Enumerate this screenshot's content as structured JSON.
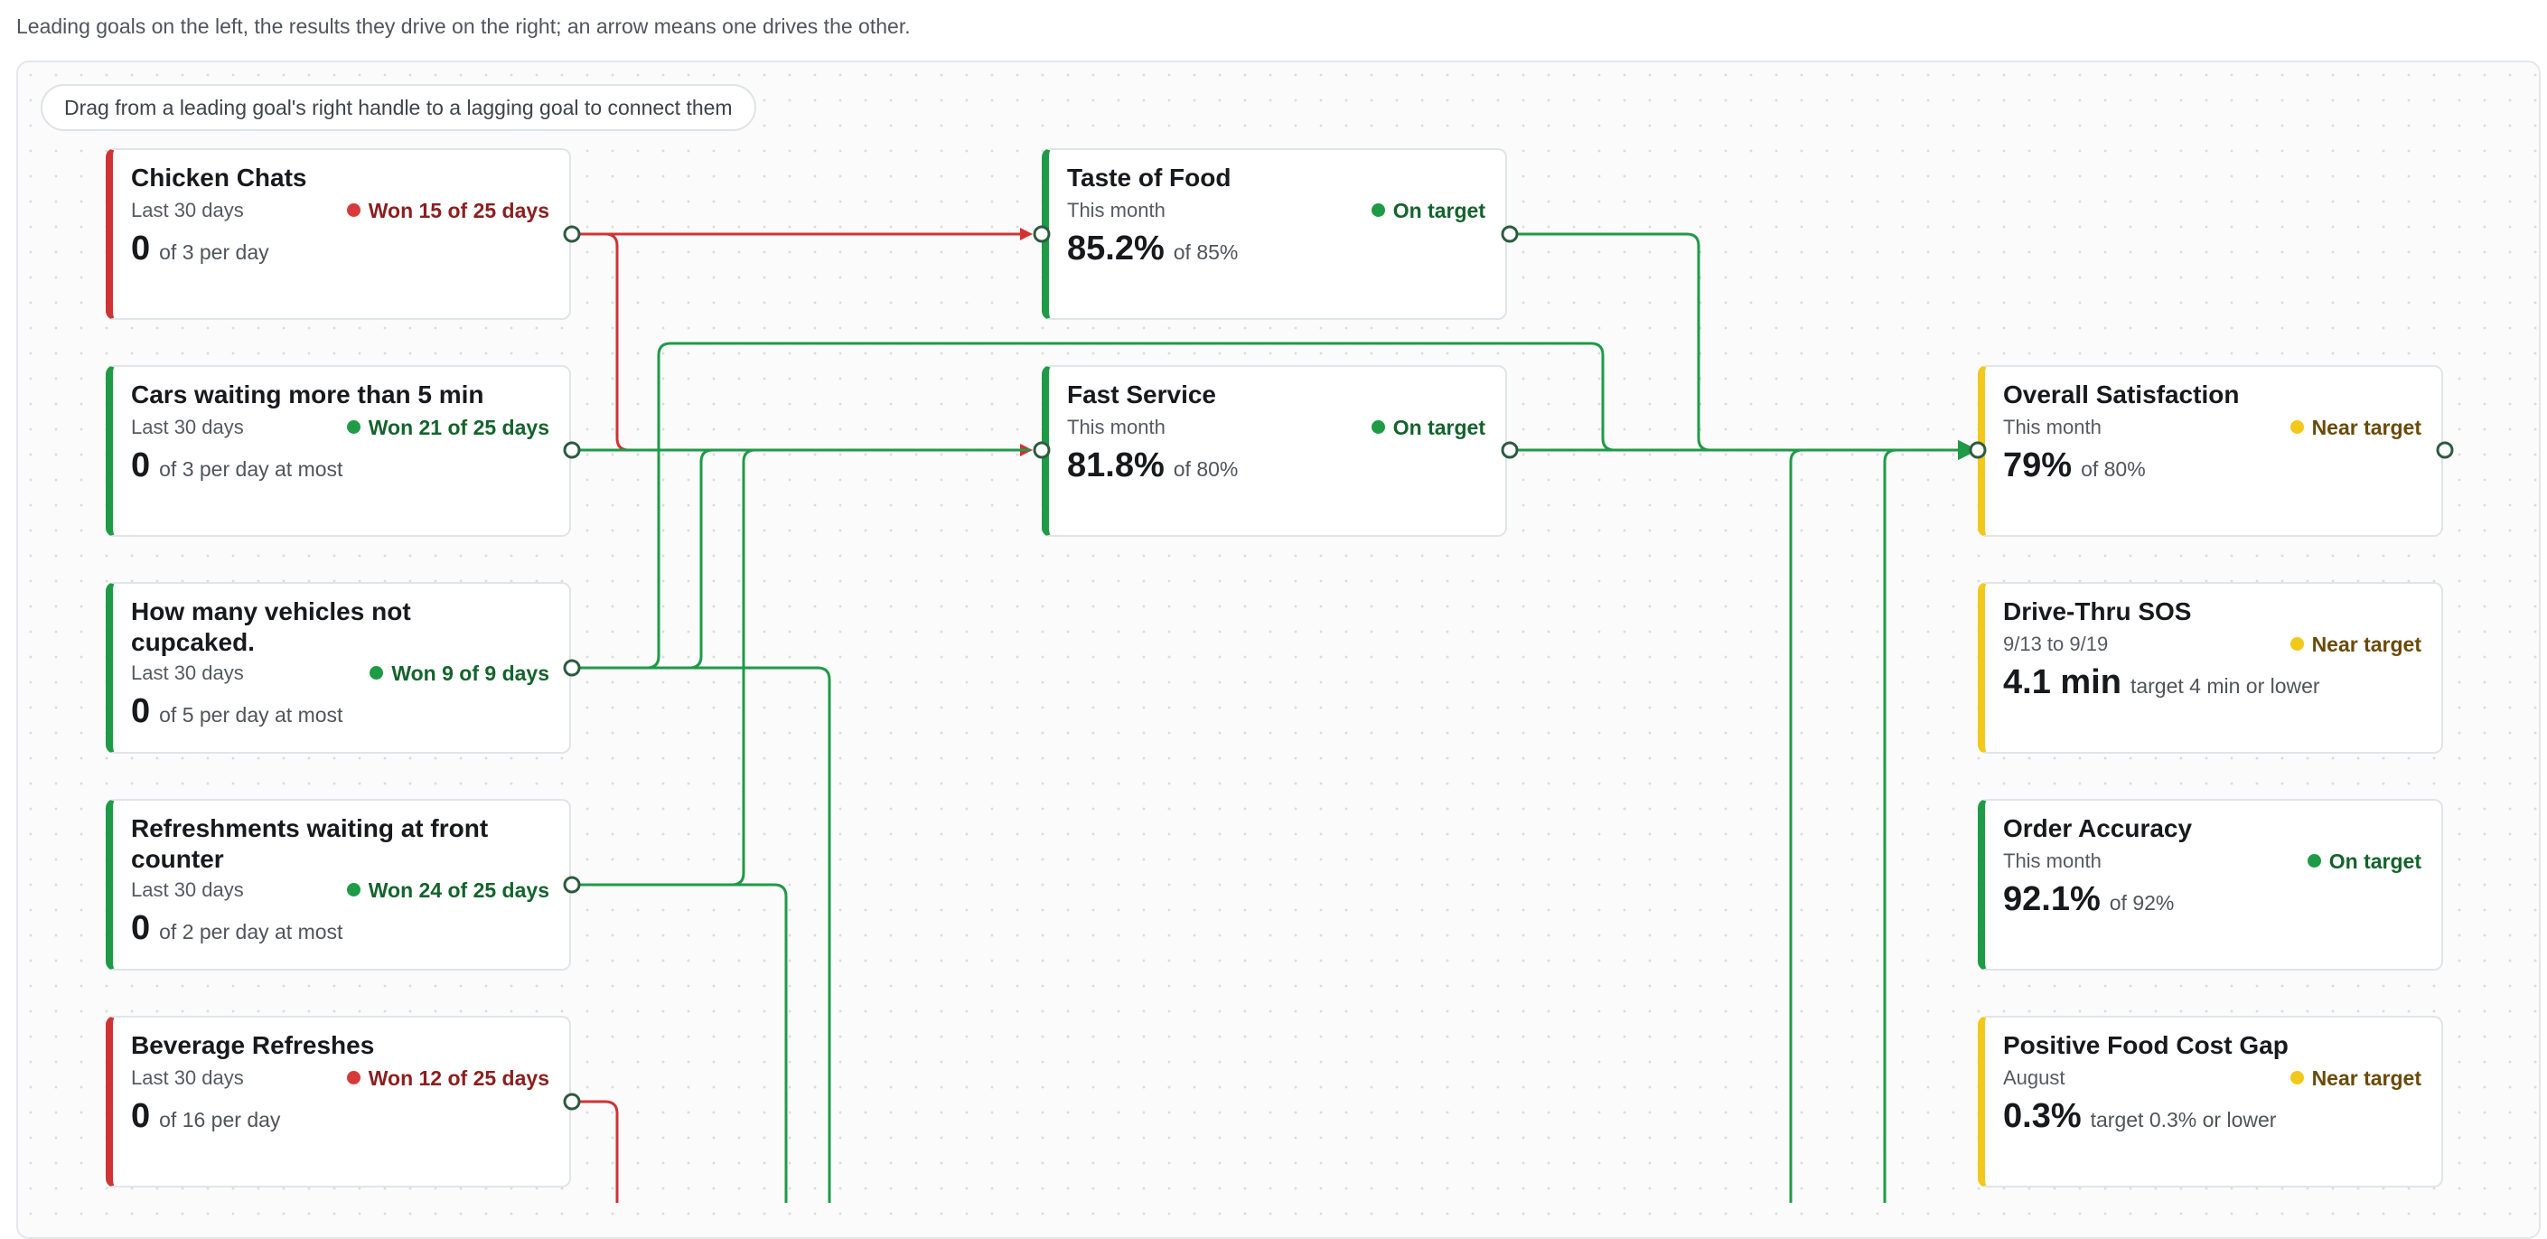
{
  "intro_text": "Leading goals on the left, the results they drive on the right; an arrow means one drives the other.",
  "hint_text": "Drag from a leading goal's right handle to a lagging goal to connect them",
  "colors": {
    "green": "#1f9a47",
    "red": "#cf3434",
    "yellow": "#f2c81a",
    "handle": "#2d5a3f"
  },
  "leading": [
    {
      "title": "Chicken Chats",
      "period": "Last 30 days",
      "status": "Won 15 of 25 days",
      "status_kind": "red",
      "value": "0",
      "target": "of 3 per day"
    },
    {
      "title": "Cars waiting more than 5 min",
      "period": "Last 30 days",
      "status": "Won 21 of 25 days",
      "status_kind": "green",
      "value": "0",
      "target": "of 3 per day at most"
    },
    {
      "title": "How many vehicles not cupcaked.",
      "period": "Last 30 days",
      "status": "Won 9 of 9 days",
      "status_kind": "green",
      "value": "0",
      "target": "of 5 per day at most"
    },
    {
      "title": "Refreshments waiting at front counter",
      "period": "Last 30 days",
      "status": "Won 24 of 25 days",
      "status_kind": "green",
      "value": "0",
      "target": "of 2 per day at most"
    },
    {
      "title": "Beverage Refreshes",
      "period": "Last 30 days",
      "status": "Won 12 of 25 days",
      "status_kind": "red",
      "value": "0",
      "target": "of 16 per day"
    }
  ],
  "middle": [
    {
      "title": "Taste of Food",
      "period": "This month",
      "status": "On target",
      "status_kind": "ontarget",
      "value": "85.2%",
      "target": "of 85%"
    },
    {
      "title": "Fast Service",
      "period": "This month",
      "status": "On target",
      "status_kind": "ontarget",
      "value": "81.8%",
      "target": "of 80%"
    }
  ],
  "lagging": [
    {
      "title": "Overall Satisfaction",
      "period": "This month",
      "status": "Near target",
      "status_kind": "near",
      "value": "79%",
      "target": "of 80%"
    },
    {
      "title": "Drive-Thru SOS",
      "period": "9/13 to 9/19",
      "status": "Near target",
      "status_kind": "near",
      "value": "4.1 min",
      "target": "target 4 min or lower"
    },
    {
      "title": "Order Accuracy",
      "period": "This month",
      "status": "On target",
      "status_kind": "ontarget",
      "value": "92.1%",
      "target": "of 92%"
    },
    {
      "title": "Positive Food Cost Gap",
      "period": "August",
      "status": "Near target",
      "status_kind": "near",
      "value": "0.3%",
      "target": "target 0.3% or lower"
    }
  ]
}
